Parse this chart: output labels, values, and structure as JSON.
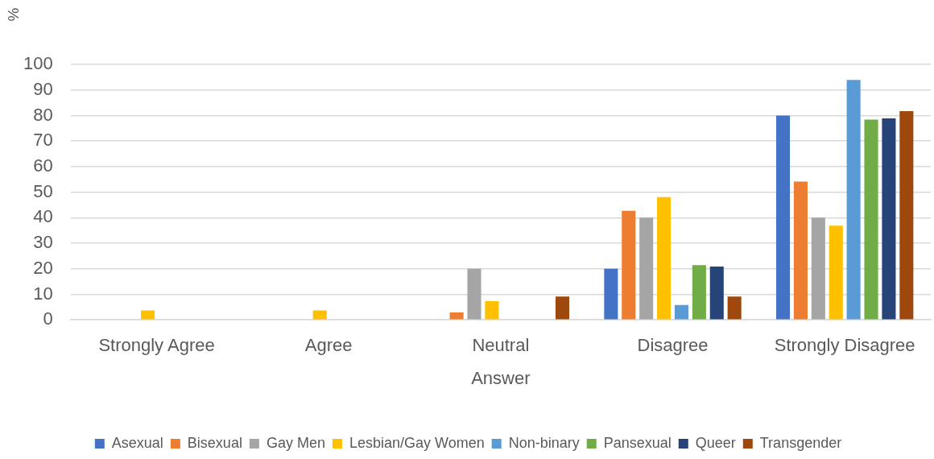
{
  "chart_data": {
    "type": "bar",
    "xlabel": "Answer",
    "ylabel": "%",
    "categories": [
      "Strongly Agree",
      "Agree",
      "Neutral",
      "Disagree",
      "Strongly Disagree"
    ],
    "series": [
      {
        "name": "Asexual",
        "color": "#4472c4",
        "values": [
          0,
          0,
          0,
          20,
          80
        ]
      },
      {
        "name": "Bisexual",
        "color": "#ed7d31",
        "values": [
          0,
          0,
          2.9,
          42.7,
          54.1
        ]
      },
      {
        "name": "Gay Men",
        "color": "#a5a5a5",
        "values": [
          0,
          0,
          20,
          40,
          40
        ]
      },
      {
        "name": "Lesbian/Gay Women",
        "color": "#ffc000",
        "values": [
          3.7,
          3.7,
          7.3,
          48.1,
          36.9
        ]
      },
      {
        "name": "Non-binary",
        "color": "#5b9bd5",
        "values": [
          0,
          0,
          0,
          5.8,
          93.9
        ]
      },
      {
        "name": "Pansexual",
        "color": "#70ad47",
        "values": [
          0,
          0,
          0,
          21.4,
          78.4
        ]
      },
      {
        "name": "Queer",
        "color": "#264478",
        "values": [
          0,
          0,
          0,
          20.9,
          78.9
        ]
      },
      {
        "name": "Transgender",
        "color": "#9e480e",
        "values": [
          0,
          0,
          9.1,
          9.1,
          81.7
        ]
      }
    ],
    "ylim": [
      0,
      100
    ],
    "yticks": [
      0,
      10,
      20,
      30,
      40,
      50,
      60,
      70,
      80,
      90,
      100
    ],
    "grid": "y",
    "legend": "bottom"
  }
}
